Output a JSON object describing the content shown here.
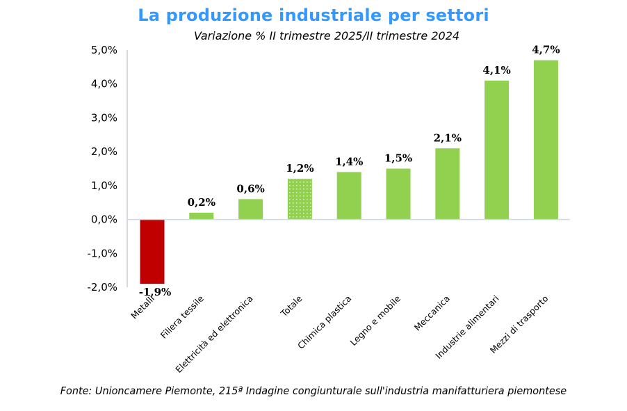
{
  "chart_data": {
    "type": "bar",
    "title": "La produzione industriale per settori",
    "subtitle": "Variazione % II trimestre 2025/II trimestre 2024",
    "xlabel": "",
    "ylabel": "",
    "categories": [
      "Metalli",
      "Filiera tessile",
      "Elettricità ed elettronica",
      "Totale",
      "Chimica plastica",
      "Legno e mobile",
      "Meccanica",
      "Industrie alimentari",
      "Mezzi di trasporto"
    ],
    "values": [
      -1.9,
      0.2,
      0.6,
      1.2,
      1.4,
      1.5,
      2.1,
      4.1,
      4.7
    ],
    "data_labels": [
      "-1,9%",
      "0,2%",
      "0,6%",
      "1,2%",
      "1,4%",
      "1,5%",
      "2,1%",
      "4,1%",
      "4,7%"
    ],
    "bar_styles": [
      "negative",
      "positive",
      "positive",
      "total",
      "positive",
      "positive",
      "positive",
      "positive",
      "positive"
    ],
    "ylim": [
      -2.0,
      5.0
    ],
    "yticks": [
      5.0,
      4.0,
      3.0,
      2.0,
      1.0,
      0.0,
      -1.0,
      -2.0
    ],
    "ytick_labels": [
      "5,0%",
      "4,0%",
      "3,0%",
      "2,0%",
      "1,0%",
      "0,0%",
      "-1,0%",
      "-2,0%"
    ],
    "grid": false,
    "legend": "none",
    "source": "Fonte: Unioncamere Piemonte, 215ª Indagine congiunturale sull'industria manifatturiera piemontese"
  },
  "colors": {
    "title": "#3399ff",
    "positive": "#92d050",
    "negative": "#c00000",
    "total_dots": "#d9f0c0",
    "axis": "#d9d9d9",
    "zero_line": "#c6d9f1"
  }
}
